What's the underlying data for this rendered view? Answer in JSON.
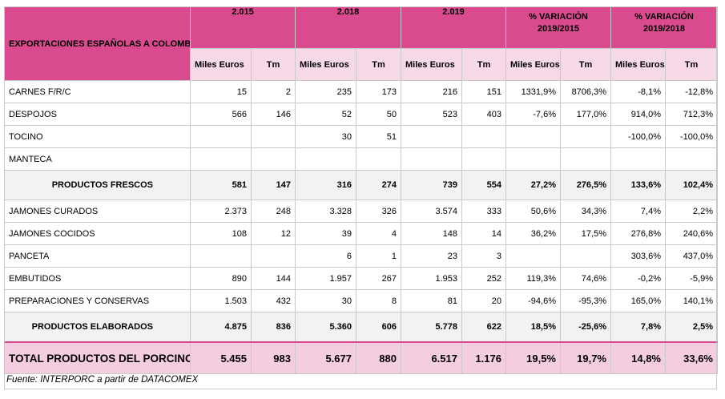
{
  "header": {
    "title": "EXPORTACIONES ESPAÑOLAS A COLOMBIA",
    "groups": [
      "2.015",
      "2.018",
      "2.019",
      "% VARIACIÓN 2019/2015",
      "% VARIACIÓN 2019/2018"
    ],
    "sub": {
      "miles": "Miles Euros",
      "tm": "Tm"
    }
  },
  "rows": [
    {
      "label": "CARNES F/R/C",
      "v": [
        "15",
        "2",
        "235",
        "173",
        "216",
        "151",
        "1331,9%",
        "8706,3%",
        "-8,1%",
        "-12,8%"
      ]
    },
    {
      "label": "DESPOJOS",
      "v": [
        "566",
        "146",
        "52",
        "50",
        "523",
        "403",
        "-7,6%",
        "177,0%",
        "914,0%",
        "712,3%"
      ]
    },
    {
      "label": "TOCINO",
      "v": [
        "",
        "",
        "30",
        "51",
        "",
        "",
        "",
        "",
        "-100,0%",
        "-100,0%"
      ]
    },
    {
      "label": "MANTECA",
      "v": [
        "",
        "",
        "",
        "",
        "",
        "",
        "",
        "",
        "",
        ""
      ]
    },
    {
      "label": "PRODUCTOS FRESCOS",
      "summary": true,
      "v": [
        "581",
        "147",
        "316",
        "274",
        "739",
        "554",
        "27,2%",
        "276,5%",
        "133,6%",
        "102,4%"
      ]
    },
    {
      "label": "JAMONES CURADOS",
      "v": [
        "2.373",
        "248",
        "3.328",
        "326",
        "3.574",
        "333",
        "50,6%",
        "34,3%",
        "7,4%",
        "2,2%"
      ]
    },
    {
      "label": "JAMONES COCIDOS",
      "v": [
        "108",
        "12",
        "39",
        "4",
        "148",
        "14",
        "36,2%",
        "17,5%",
        "276,8%",
        "240,6%"
      ]
    },
    {
      "label": "PANCETA",
      "v": [
        "",
        "",
        "6",
        "1",
        "23",
        "3",
        "",
        "",
        "303,6%",
        "437,0%"
      ]
    },
    {
      "label": "EMBUTIDOS",
      "v": [
        "890",
        "144",
        "1.957",
        "267",
        "1.953",
        "252",
        "119,3%",
        "74,6%",
        "-0,2%",
        "-5,9%"
      ]
    },
    {
      "label": "PREPARACIONES Y CONSERVAS",
      "v": [
        "1.503",
        "432",
        "30",
        "8",
        "81",
        "20",
        "-94,6%",
        "-95,3%",
        "165,0%",
        "140,1%"
      ]
    },
    {
      "label": "PRODUCTOS ELABORADOS",
      "summary": true,
      "v": [
        "4.875",
        "836",
        "5.360",
        "606",
        "5.778",
        "622",
        "18,5%",
        "-25,6%",
        "7,8%",
        "2,5%"
      ]
    }
  ],
  "total": {
    "label": "TOTAL PRODUCTOS DEL PORCINO",
    "v": [
      "5.455",
      "983",
      "5.677",
      "880",
      "6.517",
      "1.176",
      "19,5%",
      "19,7%",
      "14,8%",
      "33,6%"
    ]
  },
  "source": "Fuente: INTERPORC a partir de DATACOMEX",
  "colors": {
    "header": "#d94b8e",
    "subheader": "#f7d9e8",
    "total": "#f5cde0",
    "summary": "#f2f2f2"
  }
}
